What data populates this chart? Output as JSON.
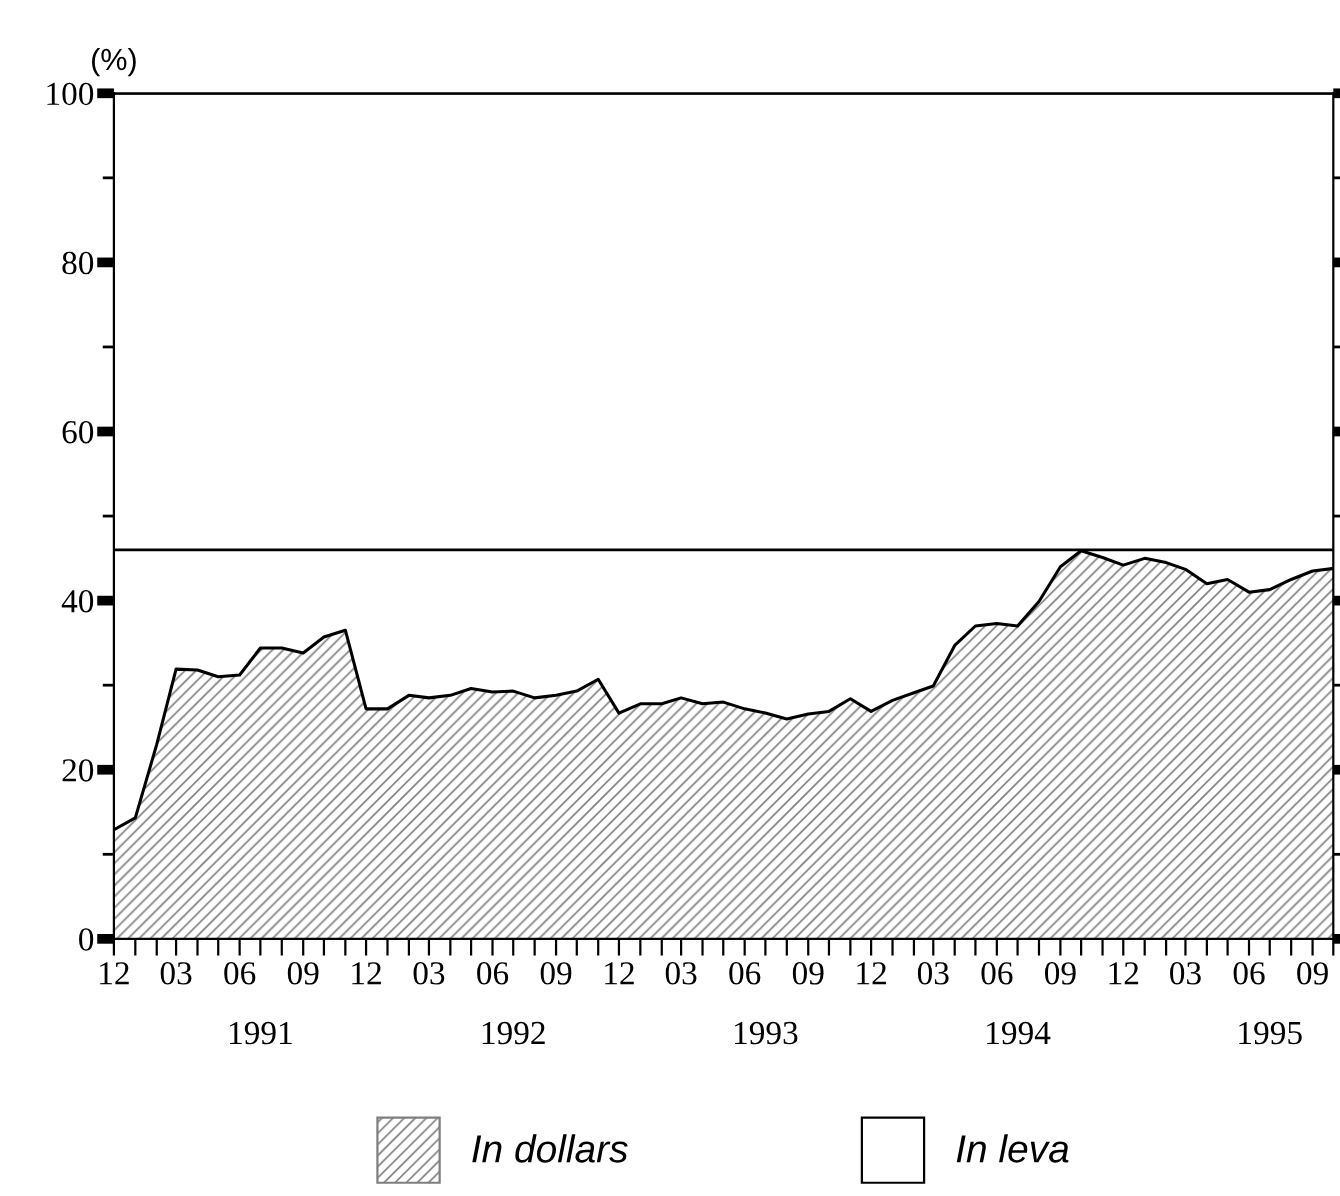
{
  "chart_data": {
    "type": "area",
    "stacked": true,
    "ylabel": "(%)",
    "x": [
      "1990-12",
      "1991-01",
      "1991-02",
      "1991-03",
      "1991-04",
      "1991-05",
      "1991-06",
      "1991-07",
      "1991-08",
      "1991-09",
      "1991-10",
      "1991-11",
      "1991-12",
      "1992-01",
      "1992-02",
      "1992-03",
      "1992-04",
      "1992-05",
      "1992-06",
      "1992-07",
      "1992-08",
      "1992-09",
      "1992-10",
      "1992-11",
      "1992-12",
      "1993-01",
      "1993-02",
      "1993-03",
      "1993-04",
      "1993-05",
      "1993-06",
      "1993-07",
      "1993-08",
      "1993-09",
      "1993-10",
      "1993-11",
      "1993-12",
      "1994-01",
      "1994-02",
      "1994-03",
      "1994-04",
      "1994-05",
      "1994-06",
      "1994-07",
      "1994-08",
      "1994-09",
      "1994-10",
      "1994-11",
      "1994-12",
      "1995-01",
      "1995-02",
      "1995-03",
      "1995-04",
      "1995-05",
      "1995-06",
      "1995-07",
      "1995-08",
      "1995-09",
      "1995-10"
    ],
    "series": [
      {
        "name": "In dollars",
        "color": "#7f7f7f",
        "values": [
          12.9,
          14.3,
          23.0,
          31.9,
          31.8,
          31.0,
          31.2,
          34.4,
          34.4,
          33.8,
          35.7,
          36.5,
          27.2,
          27.2,
          28.8,
          28.5,
          28.8,
          29.6,
          29.2,
          29.3,
          28.5,
          28.8,
          29.3,
          30.7,
          26.7,
          27.8,
          27.8,
          28.5,
          27.8,
          28.0,
          27.2,
          26.7,
          26.0,
          26.6,
          26.9,
          28.4,
          26.9,
          28.2,
          29.1,
          29.9,
          34.7,
          37.0,
          37.3,
          37.0,
          39.9,
          44.0,
          45.9,
          45.1,
          44.2,
          45.0,
          44.5,
          43.7,
          42.0,
          42.5,
          41.0,
          41.3,
          42.5,
          43.5,
          43.8
        ]
      },
      {
        "name": "In leva",
        "color": "#ffffff",
        "values": [
          87.1,
          85.7,
          77.0,
          68.1,
          68.2,
          69.0,
          68.8,
          65.6,
          65.6,
          66.2,
          64.3,
          63.5,
          72.8,
          72.8,
          71.2,
          71.5,
          71.2,
          70.4,
          70.8,
          70.7,
          71.5,
          71.2,
          70.7,
          69.3,
          73.3,
          72.2,
          72.2,
          71.5,
          72.2,
          72.0,
          72.8,
          73.3,
          74.0,
          73.4,
          73.1,
          71.6,
          73.1,
          71.8,
          70.9,
          70.1,
          65.3,
          63.0,
          62.7,
          63.0,
          60.1,
          56.0,
          54.1,
          54.9,
          55.8,
          55.0,
          55.5,
          56.3,
          58.0,
          57.5,
          59.0,
          58.7,
          57.5,
          56.5,
          56.2
        ]
      }
    ],
    "xlim": [
      "1990-12",
      "1995-10"
    ],
    "xticks": [
      {
        "value": "1990-12",
        "label": "12"
      },
      {
        "value": "1991-01",
        "label": null
      },
      {
        "value": "1991-02",
        "label": null
      },
      {
        "value": "1991-03",
        "label": "03"
      },
      {
        "value": "1991-04",
        "label": null
      },
      {
        "value": "1991-05",
        "label": null
      },
      {
        "value": "1991-06",
        "label": "06"
      },
      {
        "value": "1991-07",
        "label": null
      },
      {
        "value": "1991-08",
        "label": null
      },
      {
        "value": "1991-09",
        "label": "09"
      },
      {
        "value": "1991-10",
        "label": null
      },
      {
        "value": "1991-11",
        "label": null
      },
      {
        "value": "1991-12",
        "label": "12"
      },
      {
        "value": "1992-01",
        "label": null
      },
      {
        "value": "1992-02",
        "label": null
      },
      {
        "value": "1992-03",
        "label": "03"
      },
      {
        "value": "1992-04",
        "label": null
      },
      {
        "value": "1992-05",
        "label": null
      },
      {
        "value": "1992-06",
        "label": "06"
      },
      {
        "value": "1992-07",
        "label": null
      },
      {
        "value": "1992-08",
        "label": null
      },
      {
        "value": "1992-09",
        "label": "09"
      },
      {
        "value": "1992-10",
        "label": null
      },
      {
        "value": "1992-11",
        "label": null
      },
      {
        "value": "1992-12",
        "label": "12"
      },
      {
        "value": "1993-01",
        "label": null
      },
      {
        "value": "1993-02",
        "label": null
      },
      {
        "value": "1993-03",
        "label": "03"
      },
      {
        "value": "1993-04",
        "label": null
      },
      {
        "value": "1993-05",
        "label": null
      },
      {
        "value": "1993-06",
        "label": "06"
      },
      {
        "value": "1993-07",
        "label": null
      },
      {
        "value": "1993-08",
        "label": null
      },
      {
        "value": "1993-09",
        "label": "09"
      },
      {
        "value": "1993-10",
        "label": null
      },
      {
        "value": "1993-11",
        "label": null
      },
      {
        "value": "1993-12",
        "label": "12"
      },
      {
        "value": "1994-01",
        "label": null
      },
      {
        "value": "1994-02",
        "label": null
      },
      {
        "value": "1994-03",
        "label": "03"
      },
      {
        "value": "1994-04",
        "label": null
      },
      {
        "value": "1994-05",
        "label": null
      },
      {
        "value": "1994-06",
        "label": "06"
      },
      {
        "value": "1994-07",
        "label": null
      },
      {
        "value": "1994-08",
        "label": null
      },
      {
        "value": "1994-09",
        "label": "09"
      },
      {
        "value": "1994-10",
        "label": null
      },
      {
        "value": "1994-11",
        "label": null
      },
      {
        "value": "1994-12",
        "label": "12"
      },
      {
        "value": "1995-01",
        "label": null
      },
      {
        "value": "1995-02",
        "label": null
      },
      {
        "value": "1995-03",
        "label": "03"
      },
      {
        "value": "1995-04",
        "label": null
      },
      {
        "value": "1995-05",
        "label": null
      },
      {
        "value": "1995-06",
        "label": "06"
      },
      {
        "value": "1995-07",
        "label": null
      },
      {
        "value": "1995-08",
        "label": null
      },
      {
        "value": "1995-09",
        "label": "09"
      },
      {
        "value": "1995-10",
        "label": null
      }
    ],
    "x2lim": [
      "1990-12",
      "1995-10"
    ],
    "x2ticks": [
      {
        "value": "1991-07",
        "label": "1991"
      },
      {
        "value": "1992-07",
        "label": "1992"
      },
      {
        "value": "1993-07",
        "label": "1993"
      },
      {
        "value": "1994-07",
        "label": "1994"
      },
      {
        "value": "1995-07",
        "label": "1995"
      }
    ],
    "ylim": [
      0,
      100
    ],
    "yticks": [
      0,
      {
        "value": 10,
        "label": null
      },
      20,
      {
        "value": 30,
        "label": null
      },
      40,
      {
        "value": 50,
        "label": null
      },
      60,
      {
        "value": 70,
        "label": null
      },
      80,
      {
        "value": 90,
        "label": null
      },
      100
    ],
    "ref_lines": [
      {
        "axis": "y",
        "value": 46,
        "color": "#000000"
      }
    ],
    "grid": false,
    "legend": "bottom"
  }
}
